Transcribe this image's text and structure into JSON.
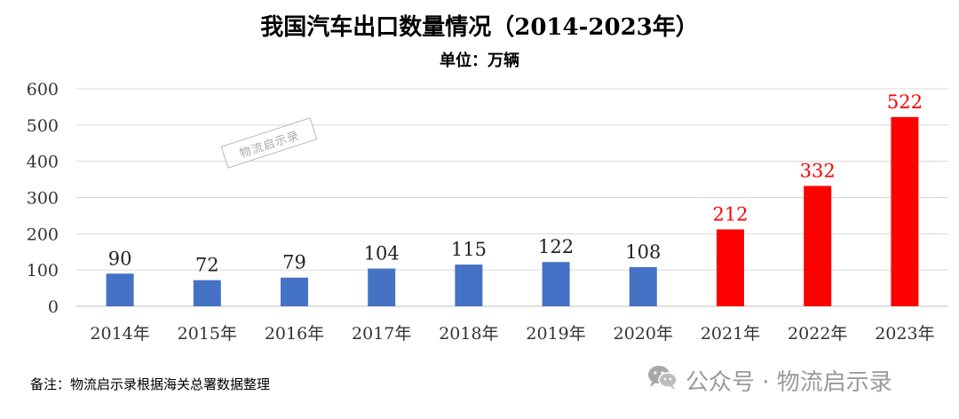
{
  "title": "我国汽车出口数量情况（2014-2023年）",
  "subtitle": "单位：万辆",
  "note": "备注：物流启示录根据海关总署数据整理",
  "watermark_stamp": "物流启示录",
  "brand": {
    "text": "公众号 · 物流启示录",
    "icon": "wechat-icon"
  },
  "colors": {
    "blue": "#4472C4",
    "red": "#FF0000",
    "grid": "#d9d9d9"
  },
  "chart_data": {
    "type": "bar",
    "title": "我国汽车出口数量情况（2014-2023年）",
    "unit": "单位：万辆",
    "categories": [
      "2014年",
      "2015年",
      "2016年",
      "2017年",
      "2018年",
      "2019年",
      "2020年",
      "2021年",
      "2022年",
      "2023年"
    ],
    "values": [
      90,
      72,
      79,
      104,
      115,
      122,
      108,
      212,
      332,
      522
    ],
    "bar_colors": [
      "#4472C4",
      "#4472C4",
      "#4472C4",
      "#4472C4",
      "#4472C4",
      "#4472C4",
      "#4472C4",
      "#FF0000",
      "#FF0000",
      "#FF0000"
    ],
    "ylim": [
      0,
      600
    ],
    "yticks": [
      0,
      100,
      200,
      300,
      400,
      500,
      600
    ],
    "grid": true,
    "legend": "none"
  }
}
